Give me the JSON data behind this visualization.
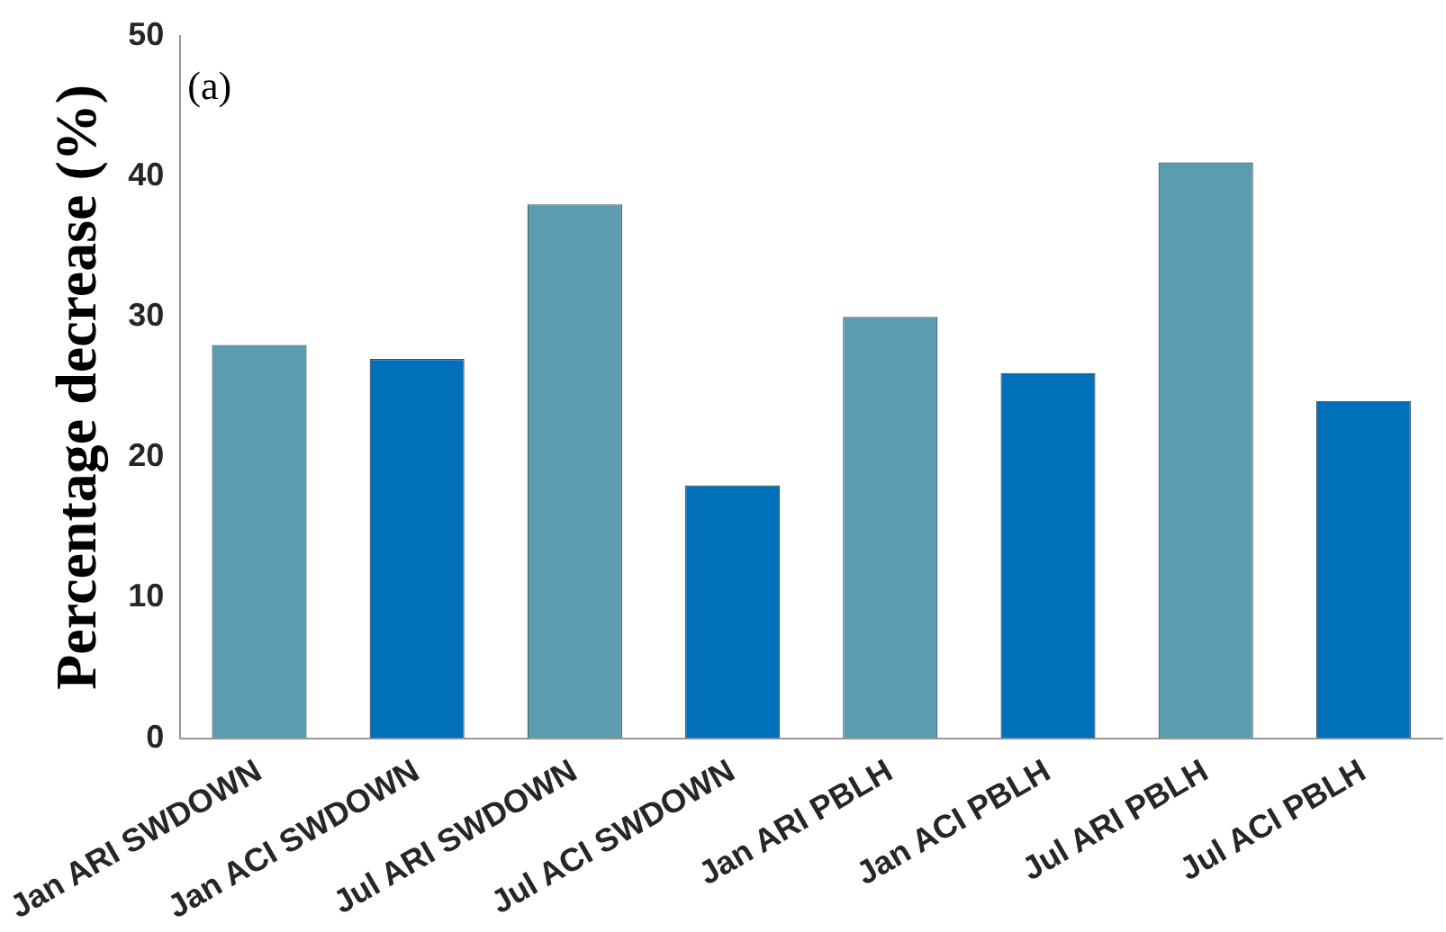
{
  "chart_data": {
    "type": "bar",
    "ylabel": "Percentage decrease (%)",
    "categories": [
      "Jan ARI SWDOWN",
      "Jan ACI SWDOWN",
      "Jul ARI SWDOWN",
      "Jul ACI SWDOWN",
      "Jan ARI PBLH",
      "Jan ACI PBLH",
      "Jul ARI PBLH",
      "Jul ACI PBLH"
    ],
    "values": [
      28,
      27,
      38,
      18,
      30,
      26,
      41,
      24
    ],
    "colors": [
      "#5b9daf",
      "#0070bb",
      "#5b9daf",
      "#0070bb",
      "#5b9daf",
      "#0070bb",
      "#5b9daf",
      "#0070bb"
    ],
    "ylim": [
      0,
      50
    ],
    "yticks": [
      0,
      10,
      20,
      30,
      40,
      50
    ],
    "grid": false,
    "legend": false,
    "annotations": [
      "(a)"
    ]
  }
}
